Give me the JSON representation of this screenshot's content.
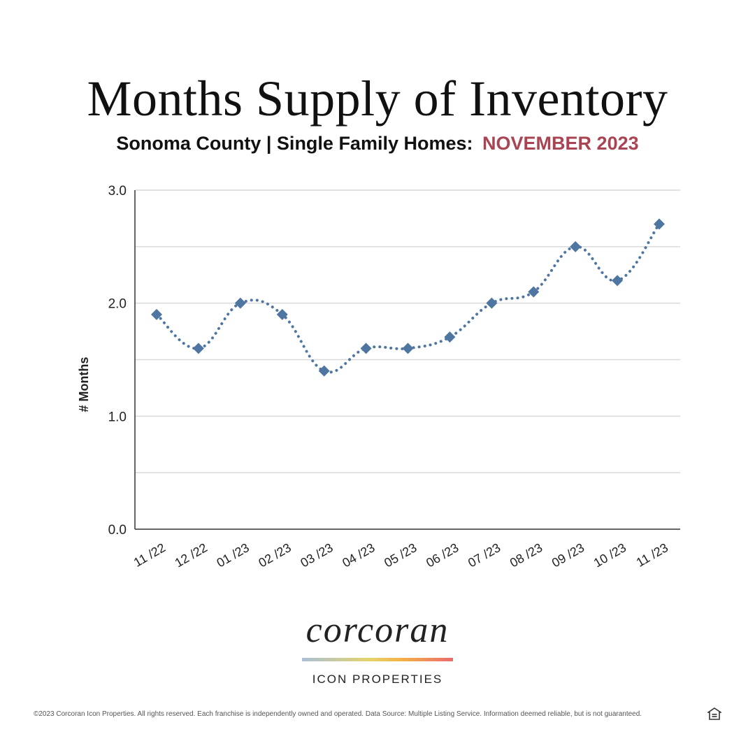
{
  "header": {
    "title": "Months Supply of Inventory",
    "subtitle": "Sonoma County | Single Family Homes:",
    "subtitle_accent": "NOVEMBER 2023"
  },
  "colors": {
    "accent": "#a94452",
    "series": "#4e76a0",
    "grid": "#d9d9d9",
    "axis": "#333333"
  },
  "chart_data": {
    "type": "line",
    "title": "",
    "xlabel": "",
    "ylabel": "# Months",
    "ylim": [
      0,
      3
    ],
    "yticks": [
      0,
      1,
      2,
      3
    ],
    "ytick_labels": [
      "0.0",
      "1.0",
      "2.0",
      "3.0"
    ],
    "gridlines": [
      0.5,
      1,
      1.5,
      2,
      2.5,
      3
    ],
    "grid": true,
    "line_style": "dotted",
    "marker": "diamond",
    "categories": [
      "11 /22",
      "12 /22",
      "01 /23",
      "02 /23",
      "03 /23",
      "04 /23",
      "05 /23",
      "06 /23",
      "07 /23",
      "08 /23",
      "09 /23",
      "10 /23",
      "11 /23"
    ],
    "series": [
      {
        "values": [
          1.9,
          1.6,
          2.0,
          1.9,
          1.4,
          1.6,
          1.6,
          1.7,
          2.0,
          2.1,
          2.5,
          2.2,
          2.7
        ]
      }
    ]
  },
  "logo": {
    "wordmark": "corcoran",
    "sub": "ICON PROPERTIES"
  },
  "footer": {
    "text": "©2023 Corcoran Icon Properties. All rights reserved. Each franchise is independently owned and operated. Data Source: Multiple Listing Service. Information deemed reliable, but is not guaranteed.",
    "icon": "equal-housing-icon"
  }
}
